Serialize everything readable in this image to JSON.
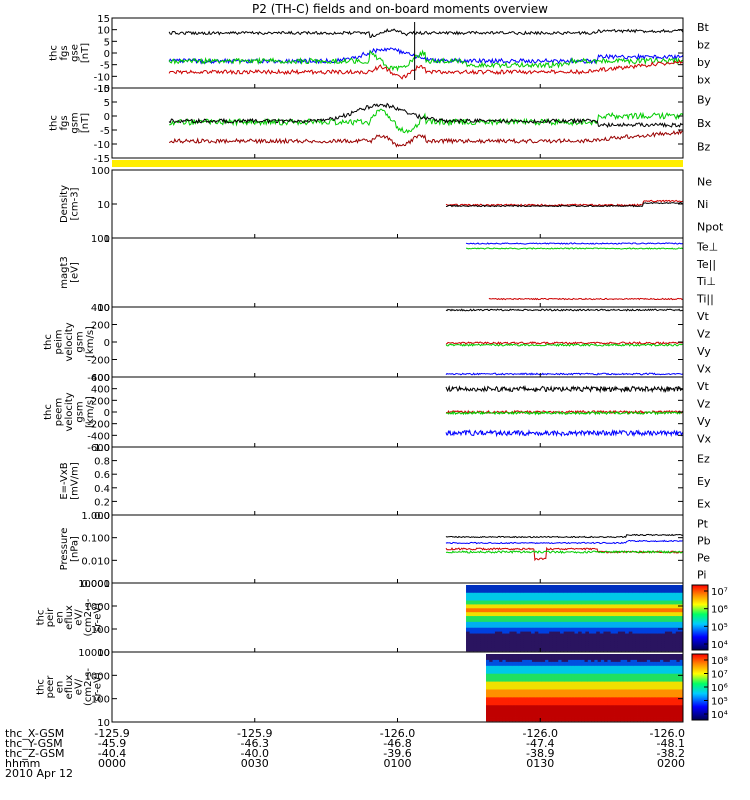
{
  "title": "P2 (TH-C) fields and on-board moments overview",
  "colors": {
    "black": "#000000",
    "red": "#cc0000",
    "green": "#00cc00",
    "blue": "#0000ff",
    "darkred": "#990000",
    "yellow": "#ffee00"
  },
  "panels": [
    {
      "id": "fgs-gse",
      "ylabel": [
        "thc",
        "fgs",
        "gse",
        "[nT]"
      ],
      "ticks": [
        "15",
        "10",
        "5",
        "0",
        "-5",
        "-10",
        "-15"
      ],
      "legend": [
        {
          "label": "Bt",
          "color": "black"
        },
        {
          "label": "bz",
          "color": "red"
        },
        {
          "label": "by",
          "color": "green"
        },
        {
          "label": "bx",
          "color": "blue"
        }
      ]
    },
    {
      "id": "fgs-gsm",
      "ylabel": [
        "thc",
        "fgs",
        "gsm",
        "[nT]"
      ],
      "ticks": [
        "10",
        "5",
        "0",
        "-5",
        "-10",
        "-15"
      ],
      "legend": [
        {
          "label": "By",
          "color": "green"
        },
        {
          "label": "Bx",
          "color": "black"
        },
        {
          "label": "Bz",
          "color": "darkred"
        }
      ]
    },
    {
      "id": "density",
      "ylabel": [
        "Density",
        "[cm-3]"
      ],
      "ticks": [
        "100",
        "10",
        "1"
      ],
      "legend": [
        {
          "label": "Ne",
          "color": "red"
        },
        {
          "label": "Ni",
          "color": "black"
        },
        {
          "label": "Npot",
          "color": "blue"
        }
      ]
    },
    {
      "id": "temperature",
      "ylabel": [
        "magt3",
        "[eV]"
      ],
      "ticks": [
        "100",
        "10"
      ],
      "legend": [
        {
          "label": "Te⊥",
          "color": "red"
        },
        {
          "label": "Te||",
          "color": "black"
        },
        {
          "label": "Ti⊥",
          "color": "blue"
        },
        {
          "label": "Ti||",
          "color": "green"
        }
      ]
    },
    {
      "id": "peim-velocity",
      "ylabel": [
        "thc",
        "peim",
        "velocity",
        "gsm",
        "[km/s]"
      ],
      "ticks": [
        "400",
        "200",
        "0",
        "-200",
        "-400"
      ],
      "legend": [
        {
          "label": "Vt",
          "color": "black"
        },
        {
          "label": "Vz",
          "color": "red"
        },
        {
          "label": "Vy",
          "color": "green"
        },
        {
          "label": "Vx",
          "color": "blue"
        }
      ]
    },
    {
      "id": "peem-velocity",
      "ylabel": [
        "thc",
        "peem",
        "velocity",
        "gsm",
        "[km/s]"
      ],
      "ticks": [
        "600",
        "400",
        "200",
        "0",
        "-200",
        "-400",
        "-600"
      ],
      "legend": [
        {
          "label": "Vt",
          "color": "black"
        },
        {
          "label": "Vz",
          "color": "red"
        },
        {
          "label": "Vy",
          "color": "green"
        },
        {
          "label": "Vx",
          "color": "blue"
        }
      ]
    },
    {
      "id": "efield",
      "ylabel": [
        "E=-VxB",
        "[mV/m]"
      ],
      "ticks": [
        "1.0",
        "0.8",
        "0.6",
        "0.4",
        "0.2",
        "0.0"
      ],
      "legend": [
        {
          "label": "Ez",
          "color": "red"
        },
        {
          "label": "Ey",
          "color": "green"
        },
        {
          "label": "Ex",
          "color": "blue"
        }
      ]
    },
    {
      "id": "pressure",
      "ylabel": [
        "Pressure",
        "[nPa]"
      ],
      "ticks": [
        "1.000",
        "0.100",
        "0.010",
        "0.001"
      ],
      "legend": [
        {
          "label": "Pt",
          "color": "black"
        },
        {
          "label": "Pb",
          "color": "red"
        },
        {
          "label": "Pe",
          "color": "green"
        },
        {
          "label": "Pi",
          "color": "blue"
        }
      ]
    },
    {
      "id": "peir-spectrogram",
      "ylabel": [
        "thc",
        "peir",
        "en",
        "eflux",
        "eV/",
        "(cm2-s-",
        "sr-eV)"
      ],
      "ticks": [
        "10000",
        "1000",
        "100",
        "10"
      ],
      "colorbar": [
        "10⁷",
        "10⁶",
        "10⁵",
        "10⁴"
      ]
    },
    {
      "id": "peer-spectrogram",
      "ylabel": [
        "thc",
        "peer",
        "en",
        "eflux",
        "eV/",
        "(cm2-s-",
        "sr-eV)"
      ],
      "ticks": [
        "10000",
        "1000",
        "100",
        "10"
      ],
      "colorbar": [
        "10⁸",
        "10⁷",
        "10⁶",
        "10⁵",
        "10⁴"
      ]
    }
  ],
  "xaxis": {
    "rows": [
      {
        "label": "thc_X-GSM",
        "values": [
          "-125.9",
          "-125.9",
          "-126.0",
          "-126.0",
          "-126.0"
        ]
      },
      {
        "label": "thc_Y-GSM",
        "values": [
          "-45.9",
          "-46.3",
          "-46.8",
          "-47.4",
          "-48.1"
        ]
      },
      {
        "label": "thc_Z-GSM",
        "values": [
          "-40.4",
          "-40.0",
          "-39.6",
          "-38.9",
          "-38.2"
        ]
      },
      {
        "label": "hhmm",
        "values": [
          "0000",
          "0030",
          "0100",
          "0130",
          "0200"
        ]
      }
    ],
    "date": "2010 Apr 12"
  }
}
